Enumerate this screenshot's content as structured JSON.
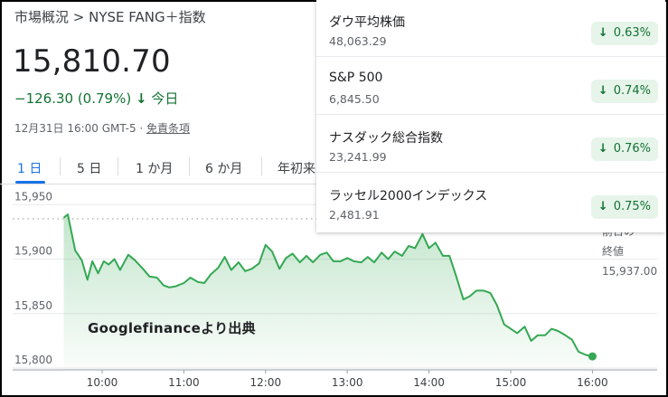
{
  "header": {
    "breadcrumb": "市場概況 > NYSE FANG＋指数",
    "price": "15,810.70",
    "change": "−126.30 (0.79%)",
    "change_arrow": "↓",
    "change_period": "今日",
    "timestamp": "12月31日 16:00 GMT-5 · ",
    "disclaimer": "免責条項"
  },
  "tabs": [
    "1 日",
    "5 日",
    "1 か月",
    "6 か月",
    "年初来"
  ],
  "active_tab": 0,
  "prev_close": {
    "label_line1": "前日の",
    "label_line2": "終値",
    "value": "15,937.00"
  },
  "watermark": "Googlefinanceより出典",
  "indices": [
    {
      "name": "ダウ平均株価",
      "value": "48,063.29",
      "change": "0.63%"
    },
    {
      "name": "S&P 500",
      "value": "6,845.50",
      "change": "0.74%"
    },
    {
      "name": "ナスダック総合指数",
      "value": "23,241.99",
      "change": "0.76%"
    },
    {
      "name": "ラッセル2000インデックス",
      "value": "2,481.91",
      "change": "0.75%"
    }
  ],
  "colors": {
    "up": "#137333",
    "badge_bg": "#e6f4ea",
    "accent": "#1a73e8",
    "line": "#34a853"
  },
  "chart_data": {
    "type": "area",
    "title": "",
    "xlabel": "",
    "ylabel": "",
    "y_ticks": [
      15950,
      15900,
      15850,
      15800
    ],
    "y_tick_labels": [
      "15,950",
      "15,900",
      "15,850",
      "15,800"
    ],
    "x_ticks": [
      10,
      11,
      12,
      13,
      14,
      15,
      16
    ],
    "x_tick_labels": [
      "10:00",
      "11:00",
      "12:00",
      "13:00",
      "14:00",
      "15:00",
      "16:00"
    ],
    "ylim": [
      15800,
      15960
    ],
    "xlim": [
      9.5,
      16.8
    ],
    "previous_close": 15937.0,
    "grid": true,
    "series": [
      {
        "x": [
          9.53,
          9.58,
          9.67,
          9.75,
          9.82,
          9.88,
          9.95,
          10.02,
          10.08,
          10.15,
          10.22,
          10.32,
          10.4,
          10.5,
          10.58,
          10.67,
          10.75,
          10.82,
          10.9,
          11.0,
          11.08,
          11.17,
          11.25,
          11.33,
          11.42,
          11.5,
          11.58,
          11.67,
          11.75,
          11.83,
          11.92,
          12.0,
          12.08,
          12.17,
          12.25,
          12.33,
          12.42,
          12.5,
          12.58,
          12.67,
          12.75,
          12.83,
          12.92,
          13.0,
          13.08,
          13.17,
          13.25,
          13.33,
          13.42,
          13.5,
          13.58,
          13.67,
          13.75,
          13.83,
          13.92,
          14.0,
          14.08,
          14.17,
          14.25,
          14.33,
          14.42,
          14.5,
          14.58,
          14.67,
          14.75,
          14.83,
          14.92,
          15.0,
          15.08,
          15.17,
          15.25,
          15.33,
          15.42,
          15.5,
          15.58,
          15.67,
          15.75,
          15.83,
          15.92,
          16.0
        ],
        "values": [
          15938,
          15941,
          15908,
          15899,
          15881,
          15898,
          15887,
          15898,
          15895,
          15900,
          15890,
          15904,
          15899,
          15891,
          15884,
          15883,
          15876,
          15874,
          15875,
          15878,
          15883,
          15879,
          15878,
          15886,
          15892,
          15902,
          15890,
          15897,
          15889,
          15891,
          15896,
          15913,
          15907,
          15891,
          15901,
          15905,
          15897,
          15903,
          15897,
          15904,
          15906,
          15898,
          15898,
          15901,
          15898,
          15897,
          15902,
          15897,
          15906,
          15900,
          15907,
          15903,
          15912,
          15910,
          15923,
          15910,
          15915,
          15903,
          15903,
          15885,
          15863,
          15866,
          15871,
          15871,
          15869,
          15858,
          15840,
          15836,
          15832,
          15838,
          15825,
          15830,
          15830,
          15836,
          15834,
          15830,
          15826,
          15815,
          15812,
          15810.7
        ]
      }
    ]
  }
}
